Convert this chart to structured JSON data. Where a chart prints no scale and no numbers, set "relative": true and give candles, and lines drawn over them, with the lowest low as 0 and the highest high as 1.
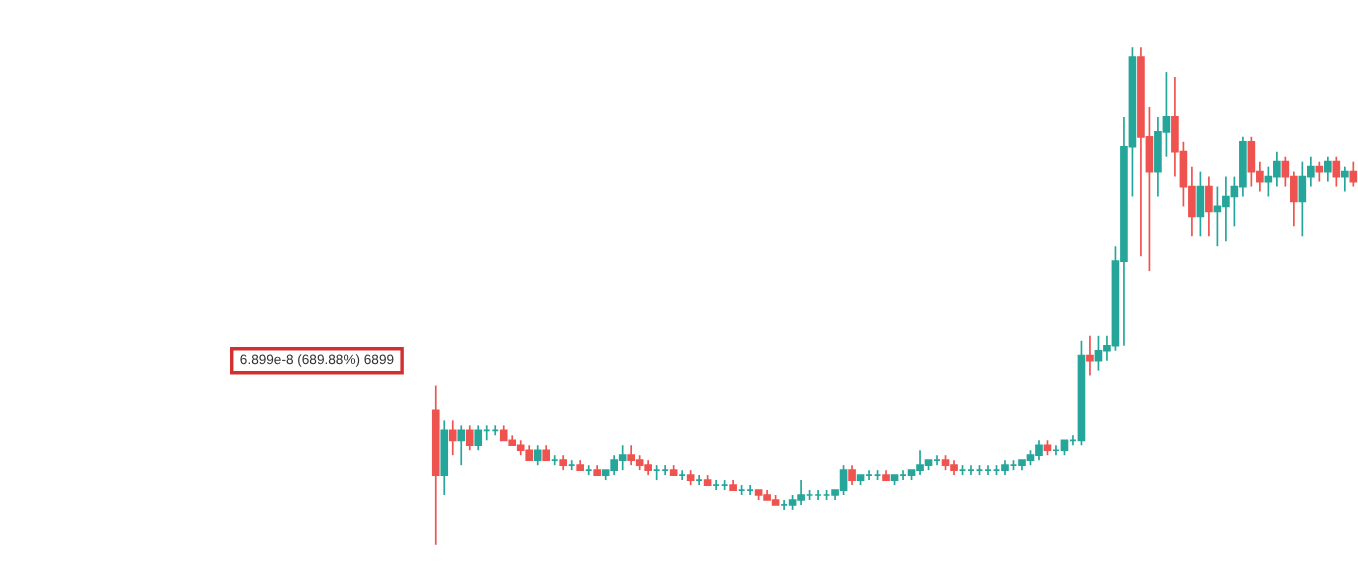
{
  "chart_data": {
    "type": "candlestick",
    "relative": true,
    "categories": [
      null,
      null,
      null,
      null,
      null,
      null,
      null,
      null,
      null,
      null,
      null,
      null,
      null,
      null,
      null,
      null,
      null,
      null,
      null,
      null,
      null,
      null,
      null,
      null,
      null,
      null,
      null,
      null,
      null,
      null,
      null,
      null,
      null,
      null,
      null,
      null,
      null,
      null,
      null,
      null,
      null,
      null,
      null,
      null,
      null,
      null,
      null,
      null,
      null,
      null,
      null,
      null,
      null,
      null,
      null,
      null,
      null,
      null,
      null,
      null,
      null,
      null,
      null,
      null,
      null,
      null,
      null,
      null,
      null,
      null,
      null,
      null,
      null,
      null,
      null,
      null,
      null,
      null,
      null,
      null,
      null,
      null,
      null,
      null,
      null,
      null,
      null,
      null,
      null,
      null,
      null,
      null,
      null,
      null,
      null,
      null,
      null,
      null,
      null,
      null,
      null,
      null,
      null,
      null,
      null,
      null,
      null,
      null,
      null
    ],
    "annotations": [
      "6.899e-8 (689.88%) 6899"
    ],
    "ohlc": [
      [
        0.27,
        0.32,
        0.0,
        0.14
      ],
      [
        0.14,
        0.25,
        0.1,
        0.23
      ],
      [
        0.23,
        0.25,
        0.18,
        0.21
      ],
      [
        0.21,
        0.24,
        0.16,
        0.23
      ],
      [
        0.23,
        0.24,
        0.19,
        0.2
      ],
      [
        0.2,
        0.24,
        0.19,
        0.23
      ],
      [
        0.23,
        0.24,
        0.21,
        0.23
      ],
      [
        0.23,
        0.24,
        0.22,
        0.23
      ],
      [
        0.23,
        0.24,
        0.21,
        0.21
      ],
      [
        0.21,
        0.22,
        0.2,
        0.2
      ],
      [
        0.2,
        0.21,
        0.18,
        0.19
      ],
      [
        0.19,
        0.2,
        0.17,
        0.17
      ],
      [
        0.17,
        0.2,
        0.16,
        0.19
      ],
      [
        0.19,
        0.2,
        0.17,
        0.17
      ],
      [
        0.17,
        0.18,
        0.16,
        0.17
      ],
      [
        0.17,
        0.18,
        0.15,
        0.16
      ],
      [
        0.16,
        0.17,
        0.15,
        0.16
      ],
      [
        0.16,
        0.17,
        0.15,
        0.15
      ],
      [
        0.15,
        0.16,
        0.14,
        0.15
      ],
      [
        0.15,
        0.16,
        0.14,
        0.14
      ],
      [
        0.14,
        0.15,
        0.13,
        0.15
      ],
      [
        0.15,
        0.18,
        0.14,
        0.17
      ],
      [
        0.17,
        0.2,
        0.15,
        0.18
      ],
      [
        0.18,
        0.2,
        0.16,
        0.17
      ],
      [
        0.17,
        0.18,
        0.15,
        0.16
      ],
      [
        0.16,
        0.17,
        0.14,
        0.15
      ],
      [
        0.15,
        0.16,
        0.13,
        0.15
      ],
      [
        0.15,
        0.16,
        0.14,
        0.15
      ],
      [
        0.15,
        0.16,
        0.14,
        0.14
      ],
      [
        0.14,
        0.15,
        0.13,
        0.14
      ],
      [
        0.14,
        0.15,
        0.12,
        0.13
      ],
      [
        0.13,
        0.14,
        0.12,
        0.13
      ],
      [
        0.13,
        0.14,
        0.12,
        0.12
      ],
      [
        0.12,
        0.13,
        0.11,
        0.12
      ],
      [
        0.12,
        0.13,
        0.11,
        0.12
      ],
      [
        0.12,
        0.13,
        0.11,
        0.11
      ],
      [
        0.11,
        0.12,
        0.1,
        0.11
      ],
      [
        0.11,
        0.12,
        0.1,
        0.11
      ],
      [
        0.11,
        0.11,
        0.09,
        0.1
      ],
      [
        0.1,
        0.11,
        0.09,
        0.09
      ],
      [
        0.09,
        0.1,
        0.08,
        0.08
      ],
      [
        0.08,
        0.09,
        0.07,
        0.08
      ],
      [
        0.08,
        0.1,
        0.07,
        0.09
      ],
      [
        0.09,
        0.13,
        0.08,
        0.1
      ],
      [
        0.1,
        0.11,
        0.09,
        0.1
      ],
      [
        0.1,
        0.11,
        0.09,
        0.1
      ],
      [
        0.1,
        0.11,
        0.09,
        0.1
      ],
      [
        0.1,
        0.11,
        0.09,
        0.11
      ],
      [
        0.11,
        0.16,
        0.1,
        0.15
      ],
      [
        0.15,
        0.16,
        0.12,
        0.13
      ],
      [
        0.13,
        0.14,
        0.12,
        0.14
      ],
      [
        0.14,
        0.15,
        0.13,
        0.14
      ],
      [
        0.14,
        0.15,
        0.13,
        0.14
      ],
      [
        0.14,
        0.15,
        0.13,
        0.13
      ],
      [
        0.13,
        0.14,
        0.12,
        0.14
      ],
      [
        0.14,
        0.15,
        0.13,
        0.14
      ],
      [
        0.14,
        0.15,
        0.13,
        0.15
      ],
      [
        0.15,
        0.19,
        0.14,
        0.16
      ],
      [
        0.16,
        0.17,
        0.15,
        0.17
      ],
      [
        0.17,
        0.18,
        0.16,
        0.17
      ],
      [
        0.17,
        0.18,
        0.15,
        0.16
      ],
      [
        0.16,
        0.17,
        0.14,
        0.15
      ],
      [
        0.15,
        0.16,
        0.14,
        0.15
      ],
      [
        0.15,
        0.16,
        0.14,
        0.15
      ],
      [
        0.15,
        0.16,
        0.14,
        0.15
      ],
      [
        0.15,
        0.16,
        0.14,
        0.15
      ],
      [
        0.15,
        0.16,
        0.14,
        0.15
      ],
      [
        0.15,
        0.17,
        0.14,
        0.16
      ],
      [
        0.16,
        0.17,
        0.15,
        0.16
      ],
      [
        0.16,
        0.17,
        0.15,
        0.17
      ],
      [
        0.17,
        0.19,
        0.16,
        0.18
      ],
      [
        0.18,
        0.21,
        0.17,
        0.2
      ],
      [
        0.2,
        0.21,
        0.18,
        0.19
      ],
      [
        0.19,
        0.2,
        0.18,
        0.19
      ],
      [
        0.19,
        0.21,
        0.18,
        0.21
      ],
      [
        0.21,
        0.22,
        0.2,
        0.21
      ],
      [
        0.21,
        0.41,
        0.2,
        0.38
      ],
      [
        0.38,
        0.42,
        0.34,
        0.37
      ],
      [
        0.37,
        0.42,
        0.35,
        0.39
      ],
      [
        0.39,
        0.42,
        0.37,
        0.4
      ],
      [
        0.4,
        0.6,
        0.39,
        0.57
      ],
      [
        0.57,
        0.86,
        0.4,
        0.8
      ],
      [
        0.8,
        1.0,
        0.7,
        0.98
      ],
      [
        0.98,
        1.0,
        0.58,
        0.82
      ],
      [
        0.82,
        0.88,
        0.55,
        0.75
      ],
      [
        0.75,
        0.86,
        0.7,
        0.83
      ],
      [
        0.83,
        0.95,
        0.78,
        0.86
      ],
      [
        0.86,
        0.94,
        0.74,
        0.79
      ],
      [
        0.79,
        0.81,
        0.68,
        0.72
      ],
      [
        0.72,
        0.76,
        0.62,
        0.66
      ],
      [
        0.66,
        0.75,
        0.62,
        0.72
      ],
      [
        0.72,
        0.74,
        0.62,
        0.67
      ],
      [
        0.67,
        0.72,
        0.6,
        0.68
      ],
      [
        0.68,
        0.74,
        0.61,
        0.7
      ],
      [
        0.7,
        0.74,
        0.64,
        0.72
      ],
      [
        0.72,
        0.82,
        0.7,
        0.81
      ],
      [
        0.81,
        0.82,
        0.72,
        0.75
      ],
      [
        0.75,
        0.77,
        0.71,
        0.73
      ],
      [
        0.73,
        0.76,
        0.7,
        0.74
      ],
      [
        0.74,
        0.79,
        0.72,
        0.77
      ],
      [
        0.77,
        0.78,
        0.72,
        0.74
      ],
      [
        0.74,
        0.75,
        0.64,
        0.69
      ],
      [
        0.69,
        0.77,
        0.62,
        0.74
      ],
      [
        0.74,
        0.78,
        0.72,
        0.76
      ],
      [
        0.76,
        0.77,
        0.73,
        0.75
      ],
      [
        0.75,
        0.78,
        0.73,
        0.77
      ],
      [
        0.77,
        0.78,
        0.72,
        0.74
      ],
      [
        0.74,
        0.76,
        0.71,
        0.75
      ],
      [
        0.75,
        0.77,
        0.72,
        0.73
      ]
    ]
  }
}
